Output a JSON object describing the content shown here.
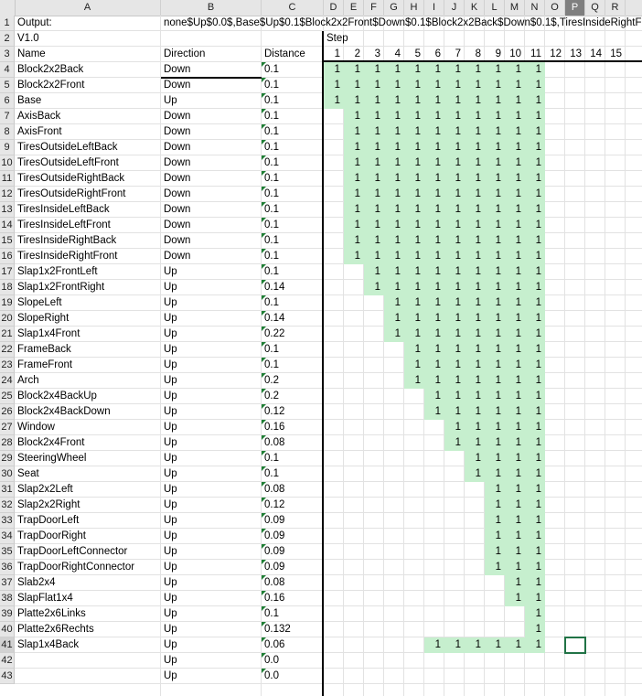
{
  "column_headers": [
    "A",
    "B",
    "C",
    "D",
    "E",
    "F",
    "G",
    "H",
    "I",
    "J",
    "K",
    "L",
    "M",
    "N",
    "O",
    "P",
    "Q",
    "R"
  ],
  "selected_column": "P",
  "selected_row": 41,
  "row_numbers": [
    1,
    2,
    3,
    4,
    5,
    6,
    7,
    8,
    9,
    10,
    11,
    12,
    13,
    14,
    15,
    16,
    17,
    18,
    19,
    20,
    21,
    22,
    23,
    24,
    25,
    26,
    27,
    28,
    29,
    30,
    31,
    32,
    33,
    34,
    35,
    36,
    37,
    38,
    39,
    40,
    41,
    42,
    43
  ],
  "output_label": "Output:",
  "output_value": "none$Up$0.0$,Base$Up$0.1$Block2x2Front$Down$0.1$Block2x2Back$Down$0.1$,TiresInsideRightF",
  "version": "V1.0",
  "step_label": "Step",
  "headers": {
    "name": "Name",
    "direction": "Direction",
    "distance": "Distance"
  },
  "step_numbers": [
    "1",
    "2",
    "3",
    "4",
    "5",
    "6",
    "7",
    "8",
    "9",
    "10",
    "11",
    "12",
    "13",
    "14",
    "15"
  ],
  "fill_color": "#c6efce",
  "rows": [
    {
      "name": "Block2x2Back",
      "dir": "Down",
      "dist": "0.1",
      "start": 1,
      "end": 11
    },
    {
      "name": "Block2x2Front",
      "dir": "Down",
      "dist": "0.1",
      "start": 1,
      "end": 11
    },
    {
      "name": "Base",
      "dir": "Up",
      "dist": "0.1",
      "start": 1,
      "end": 11
    },
    {
      "name": "AxisBack",
      "dir": "Down",
      "dist": "0.1",
      "start": 2,
      "end": 11
    },
    {
      "name": "AxisFront",
      "dir": "Down",
      "dist": "0.1",
      "start": 2,
      "end": 11
    },
    {
      "name": "TiresOutsideLeftBack",
      "dir": "Down",
      "dist": "0.1",
      "start": 2,
      "end": 11
    },
    {
      "name": "TiresOutsideLeftFront",
      "dir": "Down",
      "dist": "0.1",
      "start": 2,
      "end": 11
    },
    {
      "name": "TiresOutsideRightBack",
      "dir": "Down",
      "dist": "0.1",
      "start": 2,
      "end": 11
    },
    {
      "name": "TiresOutsideRightFront",
      "dir": "Down",
      "dist": "0.1",
      "start": 2,
      "end": 11
    },
    {
      "name": "TiresInsideLeftBack",
      "dir": "Down",
      "dist": "0.1",
      "start": 2,
      "end": 11
    },
    {
      "name": "TiresInsideLeftFront",
      "dir": "Down",
      "dist": "0.1",
      "start": 2,
      "end": 11
    },
    {
      "name": "TiresInsideRightBack",
      "dir": "Down",
      "dist": "0.1",
      "start": 2,
      "end": 11
    },
    {
      "name": "TiresInsideRightFront",
      "dir": "Down",
      "dist": "0.1",
      "start": 2,
      "end": 11
    },
    {
      "name": "Slap1x2FrontLeft",
      "dir": "Up",
      "dist": "0.1",
      "start": 3,
      "end": 11
    },
    {
      "name": "Slap1x2FrontRight",
      "dir": "Up",
      "dist": "0.14",
      "start": 3,
      "end": 11
    },
    {
      "name": "SlopeLeft",
      "dir": "Up",
      "dist": "0.1",
      "start": 4,
      "end": 11
    },
    {
      "name": "SlopeRight",
      "dir": "Up",
      "dist": "0.14",
      "start": 4,
      "end": 11
    },
    {
      "name": "Slap1x4Front",
      "dir": "Up",
      "dist": "0.22",
      "start": 4,
      "end": 11
    },
    {
      "name": "FrameBack",
      "dir": "Up",
      "dist": "0.1",
      "start": 5,
      "end": 11
    },
    {
      "name": "FrameFront",
      "dir": "Up",
      "dist": "0.1",
      "start": 5,
      "end": 11
    },
    {
      "name": "Arch",
      "dir": "Up",
      "dist": "0.2",
      "start": 5,
      "end": 11
    },
    {
      "name": "Block2x4BackUp",
      "dir": "Up",
      "dist": "0.2",
      "start": 6,
      "end": 11
    },
    {
      "name": "Block2x4BackDown",
      "dir": "Up",
      "dist": "0.12",
      "start": 6,
      "end": 11
    },
    {
      "name": "Window",
      "dir": "Up",
      "dist": "0.16",
      "start": 7,
      "end": 11
    },
    {
      "name": "Block2x4Front",
      "dir": "Up",
      "dist": "0.08",
      "start": 7,
      "end": 11
    },
    {
      "name": "SteeringWheel",
      "dir": "Up",
      "dist": "0.1",
      "start": 8,
      "end": 11
    },
    {
      "name": "Seat",
      "dir": "Up",
      "dist": "0.1",
      "start": 8,
      "end": 11
    },
    {
      "name": "Slap2x2Left",
      "dir": "Up",
      "dist": "0.08",
      "start": 9,
      "end": 11
    },
    {
      "name": "Slap2x2Right",
      "dir": "Up",
      "dist": "0.12",
      "start": 9,
      "end": 11
    },
    {
      "name": "TrapDoorLeft",
      "dir": "Up",
      "dist": "0.09",
      "start": 9,
      "end": 11
    },
    {
      "name": "TrapDoorRight",
      "dir": "Up",
      "dist": "0.09",
      "start": 9,
      "end": 11
    },
    {
      "name": "TrapDoorLeftConnector",
      "dir": "Up",
      "dist": "0.09",
      "start": 9,
      "end": 11
    },
    {
      "name": "TrapDoorRightConnector",
      "dir": "Up",
      "dist": "0.09",
      "start": 9,
      "end": 11
    },
    {
      "name": "Slab2x4",
      "dir": "Up",
      "dist": "0.08",
      "start": 10,
      "end": 11
    },
    {
      "name": "SlapFlat1x4",
      "dir": "Up",
      "dist": "0.16",
      "start": 10,
      "end": 11
    },
    {
      "name": "Platte2x6Links",
      "dir": "Up",
      "dist": "0.1",
      "start": 11,
      "end": 11
    },
    {
      "name": "Platte2x6Rechts",
      "dir": "Up",
      "dist": "0.132",
      "start": 11,
      "end": 11
    },
    {
      "name": "Slap1x4Back",
      "dir": "Up",
      "dist": "0.06",
      "start": 6,
      "end": 11
    },
    {
      "name": "",
      "dir": "Up",
      "dist": "0.0",
      "start": 0,
      "end": 0
    },
    {
      "name": "",
      "dir": "Up",
      "dist": "0.0",
      "start": 0,
      "end": 0
    }
  ]
}
